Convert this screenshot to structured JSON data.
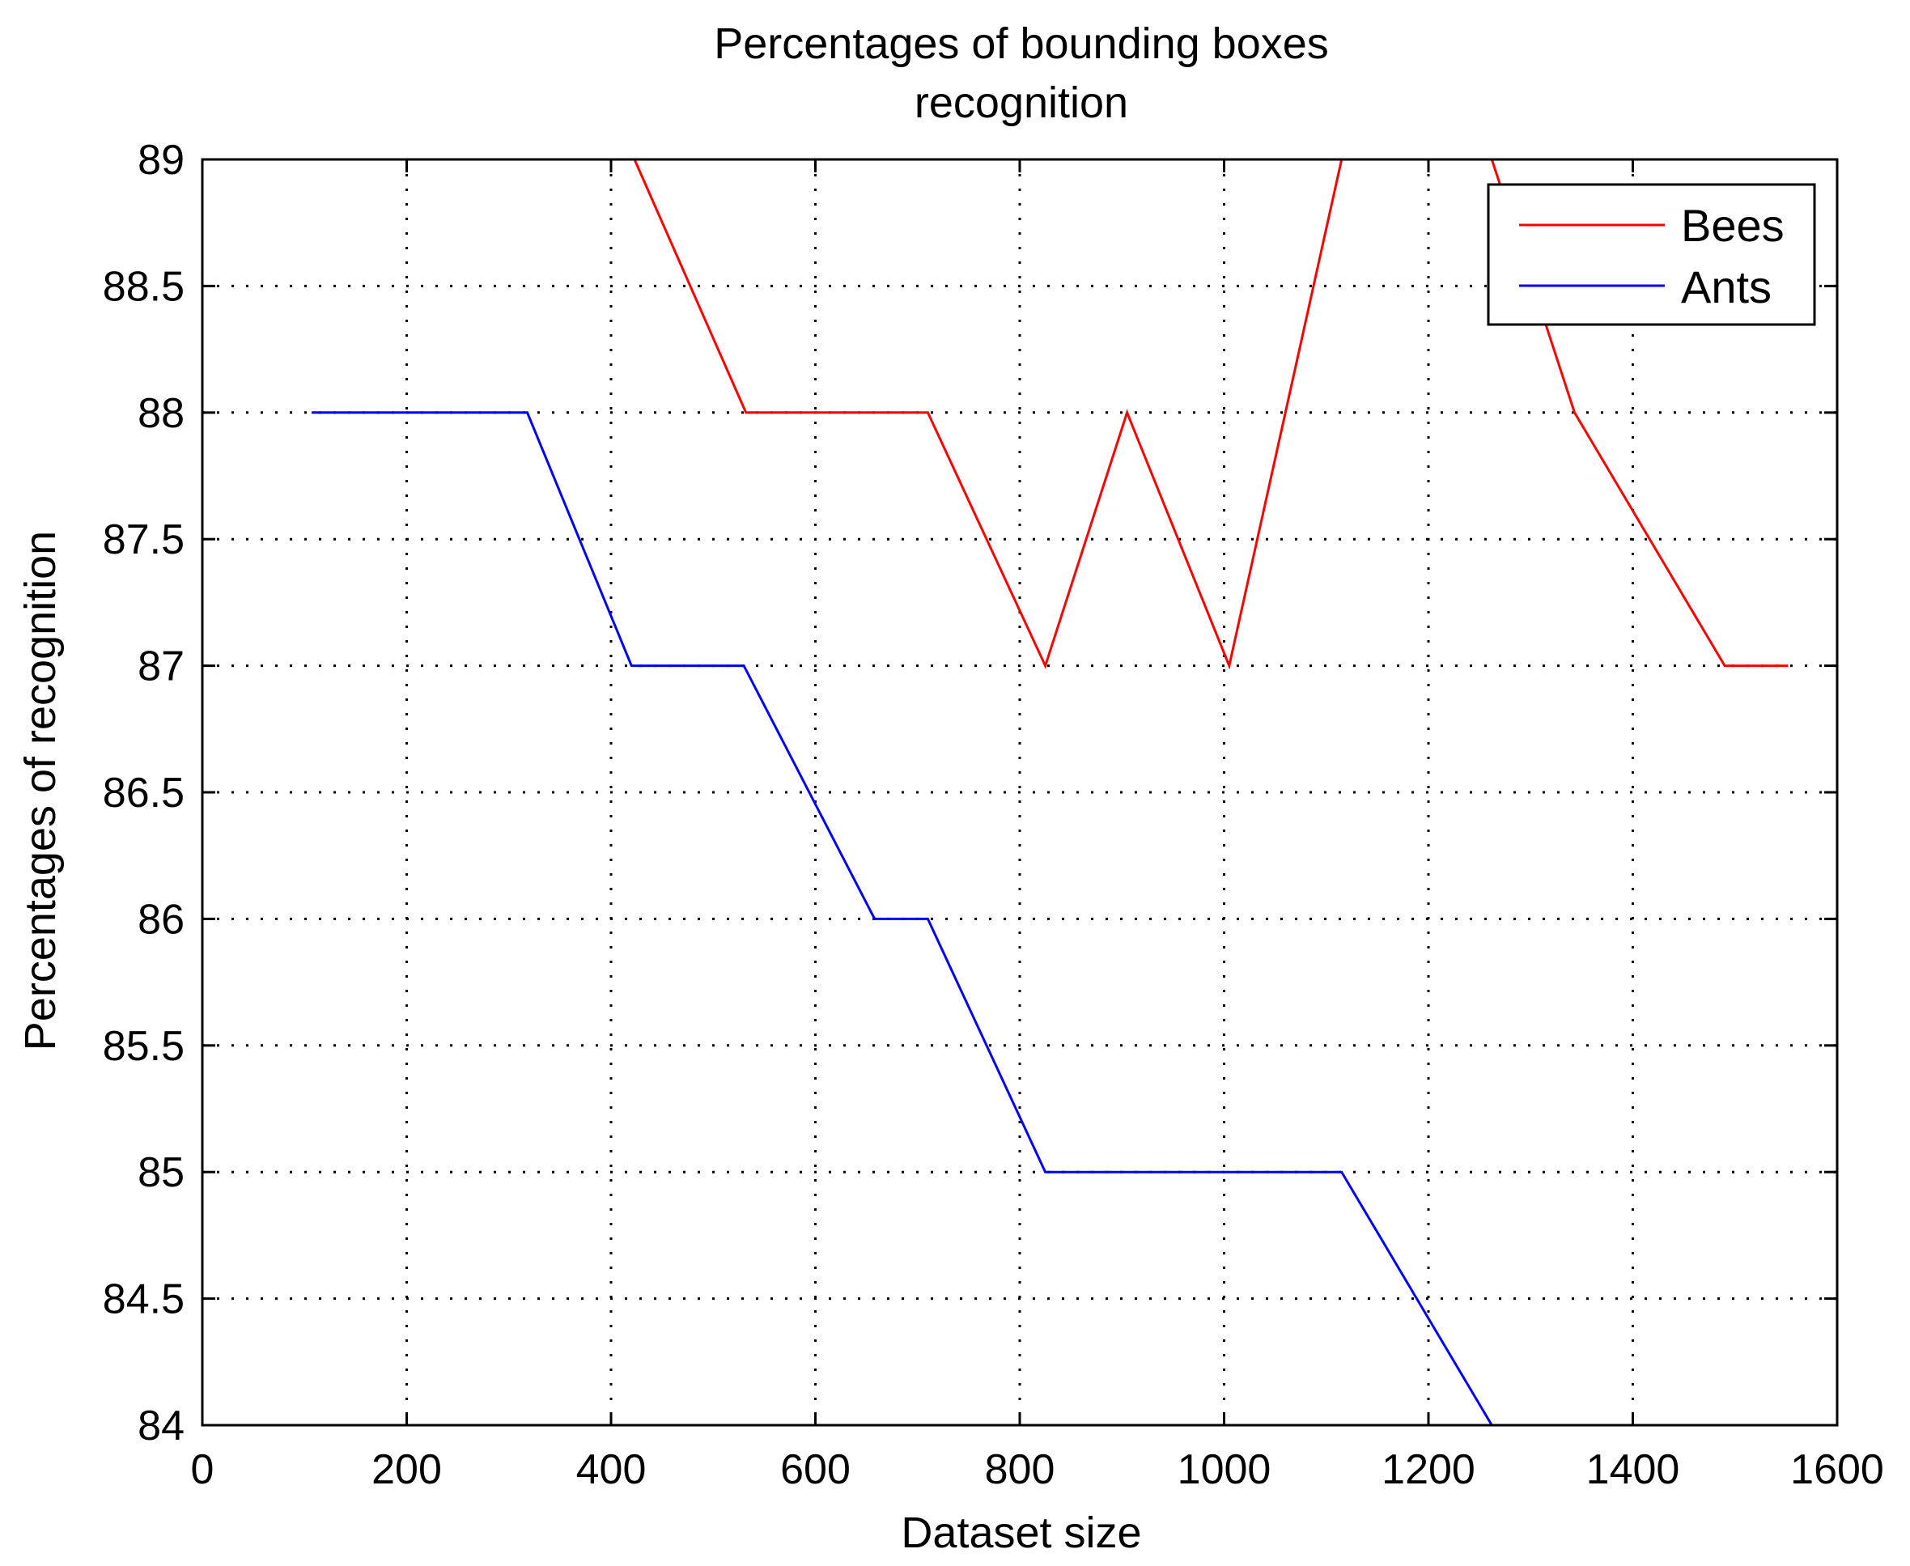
{
  "chart_data": {
    "type": "line",
    "title_lines": [
      "Percentages of bounding boxes",
      "recognition"
    ],
    "xlabel": "Dataset size",
    "ylabel": "Percentages of recognition",
    "xlim": [
      0,
      1600
    ],
    "ylim": [
      84,
      89
    ],
    "xticks": [
      0,
      200,
      400,
      600,
      800,
      1000,
      1200,
      1400,
      1600
    ],
    "xtick_labels": [
      "0",
      "200",
      "400",
      "600",
      "800",
      "1000",
      "1200",
      "1400",
      "1600"
    ],
    "yticks": [
      84,
      84.5,
      85,
      85.5,
      86,
      86.5,
      87,
      87.5,
      88,
      88.5,
      89
    ],
    "ytick_labels": [
      "84",
      "84.5",
      "85",
      "85.5",
      "86",
      "86.5",
      "87",
      "87.5",
      "88",
      "88.5",
      "89"
    ],
    "grid": true,
    "legend_position": "top-right",
    "series": [
      {
        "name": "Bees",
        "color": "#ff0000",
        "x": [
          107,
          423,
          532,
          710,
          825,
          905,
          1005,
          1115,
          1262,
          1343,
          1490,
          1552
        ],
        "y": [
          89,
          89,
          88,
          88,
          87,
          88,
          87,
          89,
          89,
          88,
          87,
          87
        ]
      },
      {
        "name": "Ants",
        "color": "#0000ff",
        "x": [
          107,
          318,
          420,
          530,
          658,
          710,
          825,
          1115,
          1262,
          1552
        ],
        "y": [
          88,
          88,
          87,
          87,
          86,
          86,
          85,
          85,
          84,
          84
        ]
      }
    ]
  }
}
